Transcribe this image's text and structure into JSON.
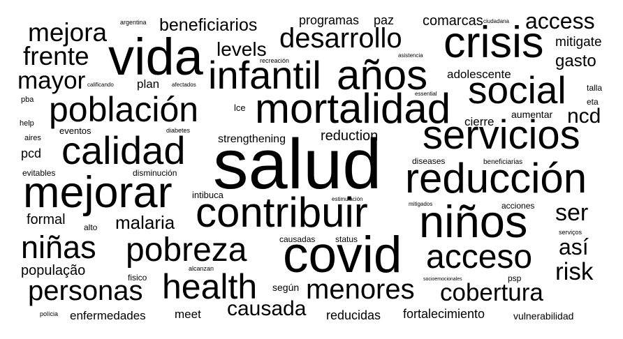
{
  "text_color": "#000000",
  "background_color": "#ffffff",
  "words": [
    "salud",
    "covid",
    "contribuir",
    "niños",
    "vida",
    "mejorar",
    "crisis",
    "mortalidad",
    "infantil",
    "años",
    "social",
    "servicios",
    "reducción",
    "calidad",
    "población",
    "health",
    "pobreza",
    "acceso",
    "desarrollo",
    "menores",
    "niñas",
    "personas",
    "cobertura",
    "causada",
    "mejora",
    "frente",
    "mayor",
    "access",
    "ser",
    "así",
    "risk",
    "ncd",
    "levels",
    "beneficiarios",
    "malaria",
    "gasto",
    "mitigate",
    "comarcas",
    "programas",
    "paz",
    "adolescente",
    "reduction",
    "strengthening",
    "cierre",
    "aumentar",
    "população",
    "formal",
    "fortalecimiento",
    "reducidas",
    "enfermedades",
    "vulnerabilidad",
    "meet",
    "según",
    "plan",
    "pcd",
    "eventos",
    "intibuca",
    "causadas",
    "status",
    "acciones",
    "disminución",
    "evitables",
    "diseases",
    "beneficiarias",
    "talla",
    "eta",
    "help",
    "aires",
    "pba",
    "lce",
    "alto",
    "psp",
    "fisico",
    "alcanzan",
    "polícia",
    "serviços",
    "mitigados",
    "estimulación",
    "socioemocionales",
    "argentina",
    "ciudadana",
    "recreación",
    "asistencia",
    "essential",
    "calificando",
    "afectados",
    "diabetes"
  ]
}
